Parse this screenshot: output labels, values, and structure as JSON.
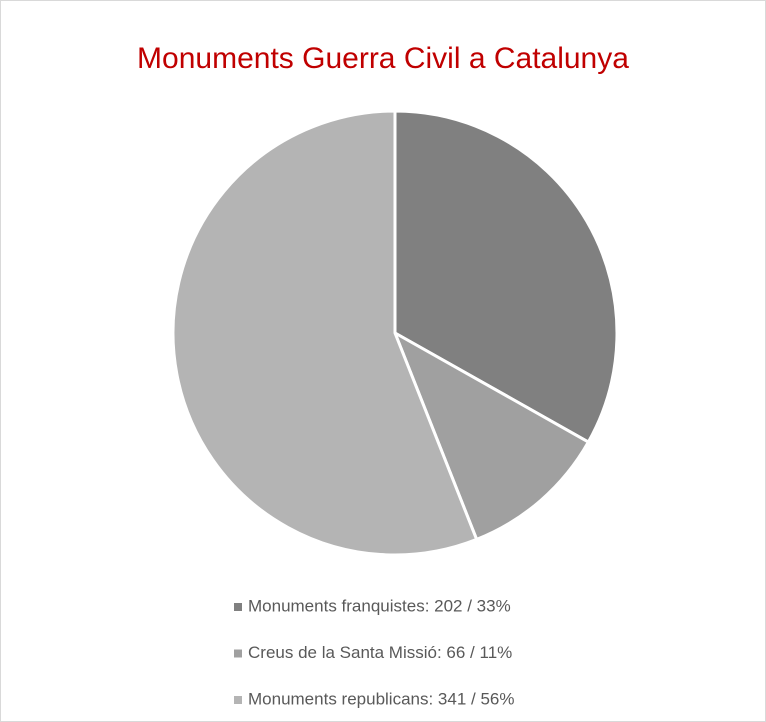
{
  "chart_data": {
    "type": "pie",
    "title": "Monuments Guerra Civil a Catalunya",
    "categories": [
      "Monuments franquistes: 202 / 33%",
      "Creus de la Santa Missió: 66 / 11%",
      "Monuments republicans: 341 / 56%"
    ],
    "values": [
      202,
      66,
      341
    ],
    "colors": [
      "#808080",
      "#a0a0a0",
      "#b4b4b4"
    ],
    "legend": "bottom"
  }
}
